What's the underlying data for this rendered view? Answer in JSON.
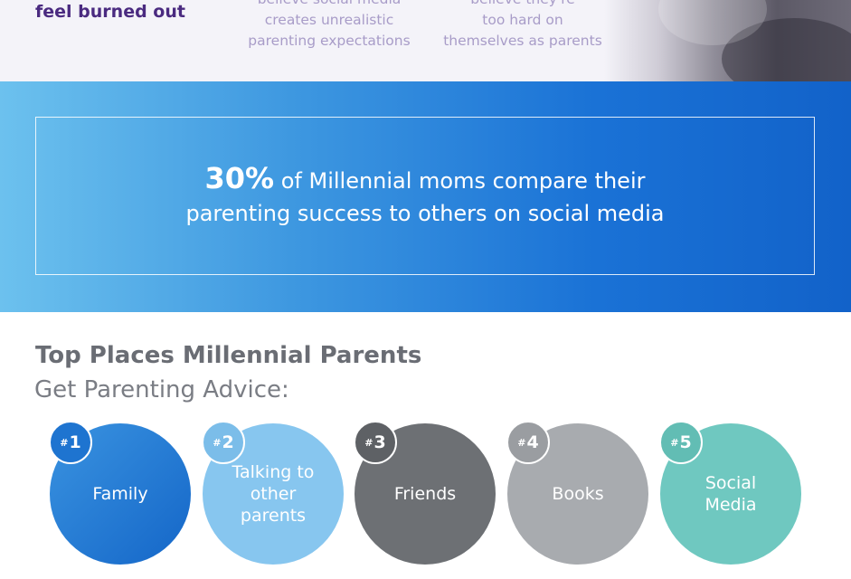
{
  "top": {
    "burned_out": "feel burned out",
    "stat1": {
      "lines": [
        "believe social media",
        "creates unrealistic",
        "parenting expectations"
      ]
    },
    "stat2": {
      "lines": [
        "believe they're",
        "too hard on",
        "themselves as parents"
      ]
    }
  },
  "callout": {
    "percent": "30%",
    "line1_rest": " of Millennial moms compare their",
    "line2": "parenting success to others on social media"
  },
  "advice": {
    "title": "Top Places Millennial Parents",
    "subtitle": "Get Parenting Advice:",
    "items": [
      {
        "rank": "1",
        "label": "Family",
        "color": "#1e74d0"
      },
      {
        "rank": "2",
        "label": "Talking to other parents",
        "color": "#87c6ef"
      },
      {
        "rank": "3",
        "label": "Friends",
        "color": "#6d7074"
      },
      {
        "rank": "4",
        "label": "Books",
        "color": "#a8abaf"
      },
      {
        "rank": "5",
        "label": "Social Media",
        "color": "#6fc8c0"
      }
    ],
    "rank_prefix": "#"
  }
}
